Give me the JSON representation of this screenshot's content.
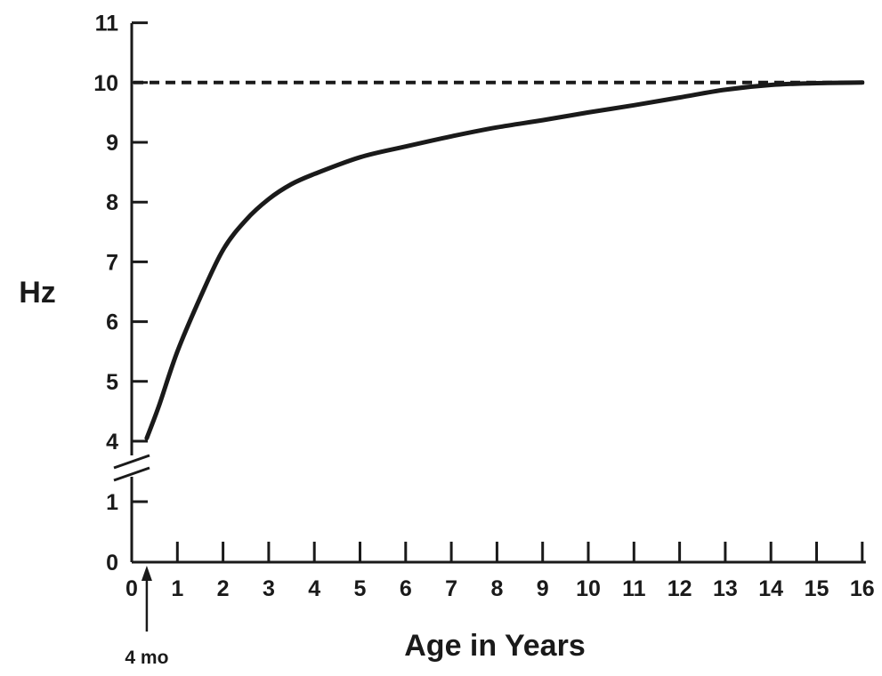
{
  "chart_data": {
    "type": "line",
    "title": "",
    "xlabel": "Age in Years",
    "ylabel": "Hz",
    "xlim": [
      0,
      16
    ],
    "ylim": [
      0,
      11
    ],
    "y_axis_break": "between 1 and 4",
    "x_ticks": [
      "0",
      "1",
      "2",
      "3",
      "4",
      "5",
      "6",
      "7",
      "8",
      "9",
      "10",
      "11",
      "12",
      "13",
      "14",
      "15",
      "16"
    ],
    "y_ticks": [
      "0",
      "1",
      "4",
      "5",
      "6",
      "7",
      "8",
      "9",
      "10",
      "11"
    ],
    "grid": false,
    "legend": "none",
    "series": [
      {
        "x": [
          0.33,
          0.6,
          1,
          1.5,
          2,
          2.5,
          3,
          3.5,
          4,
          5,
          6,
          7,
          8,
          9,
          10,
          11,
          12,
          13,
          14,
          15,
          16
        ],
        "y": [
          4.05,
          4.6,
          5.5,
          6.4,
          7.2,
          7.7,
          8.05,
          8.3,
          8.47,
          8.75,
          8.93,
          9.1,
          9.25,
          9.37,
          9.5,
          9.62,
          9.75,
          9.88,
          9.96,
          9.99,
          10.0
        ],
        "line_style": "solid"
      }
    ],
    "reference_line": {
      "y": 10,
      "line_style": "dashed"
    },
    "annotation": {
      "text": "4 mo",
      "x": 0.33,
      "symbol": "up-arrow"
    },
    "color": "#1a1a1a"
  }
}
